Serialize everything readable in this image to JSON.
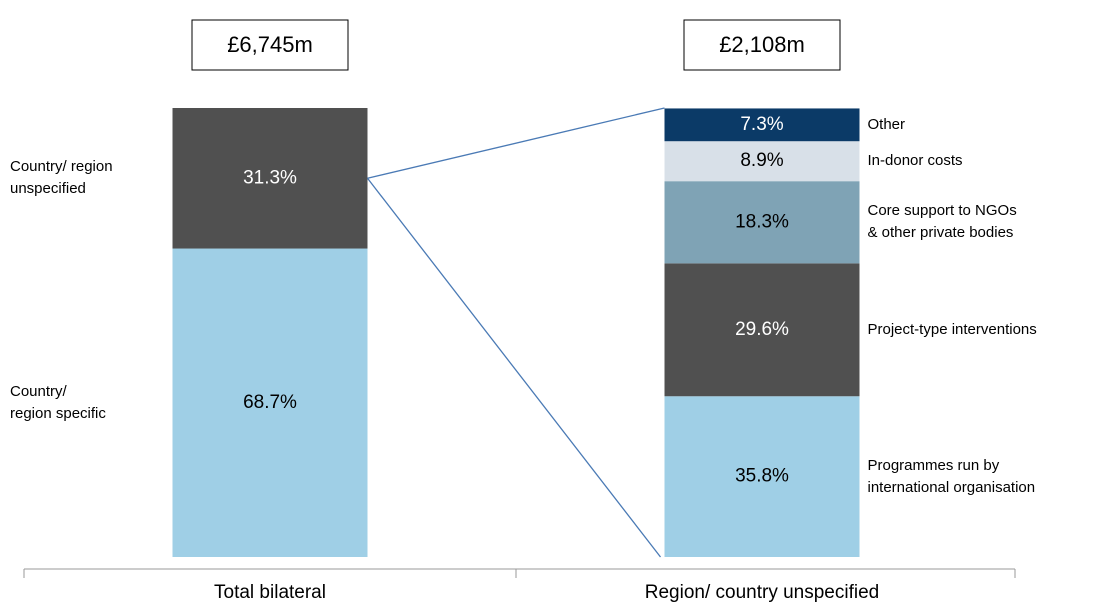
{
  "chart_data": {
    "type": "bar_of_bar",
    "categories": [
      "Total bilateral",
      "Region/ country unspecified"
    ],
    "totals": [
      "£6,745m",
      "£2,108m"
    ],
    "ylim": [
      0,
      100
    ],
    "bars": [
      {
        "segments": [
          {
            "name": "Country/ region specific",
            "color": "#9fcfe6",
            "value": 68.7,
            "value_label": "68.7%"
          },
          {
            "name": "Country/ region unspecified",
            "color": "#505050",
            "value": 31.3,
            "value_label": "31.3%"
          }
        ]
      },
      {
        "segments": [
          {
            "name": "Programmes run by international organisation",
            "color": "#9fcfe6",
            "value": 35.8,
            "value_label": "35.8%"
          },
          {
            "name": "Project-type interventions",
            "color": "#505050",
            "value": 29.6,
            "value_label": "29.6%"
          },
          {
            "name": "Core support to NGOs & other private bodies",
            "color": "#7fa3b5",
            "value": 18.3,
            "value_label": "18.3%"
          },
          {
            "name": "In-donor costs",
            "color": "#d8e0e8",
            "value": 8.9,
            "value_label": "8.9%"
          },
          {
            "name": "Other",
            "color": "#0b3a67",
            "value": 7.3,
            "value_label": "7.3%"
          }
        ]
      }
    ]
  }
}
